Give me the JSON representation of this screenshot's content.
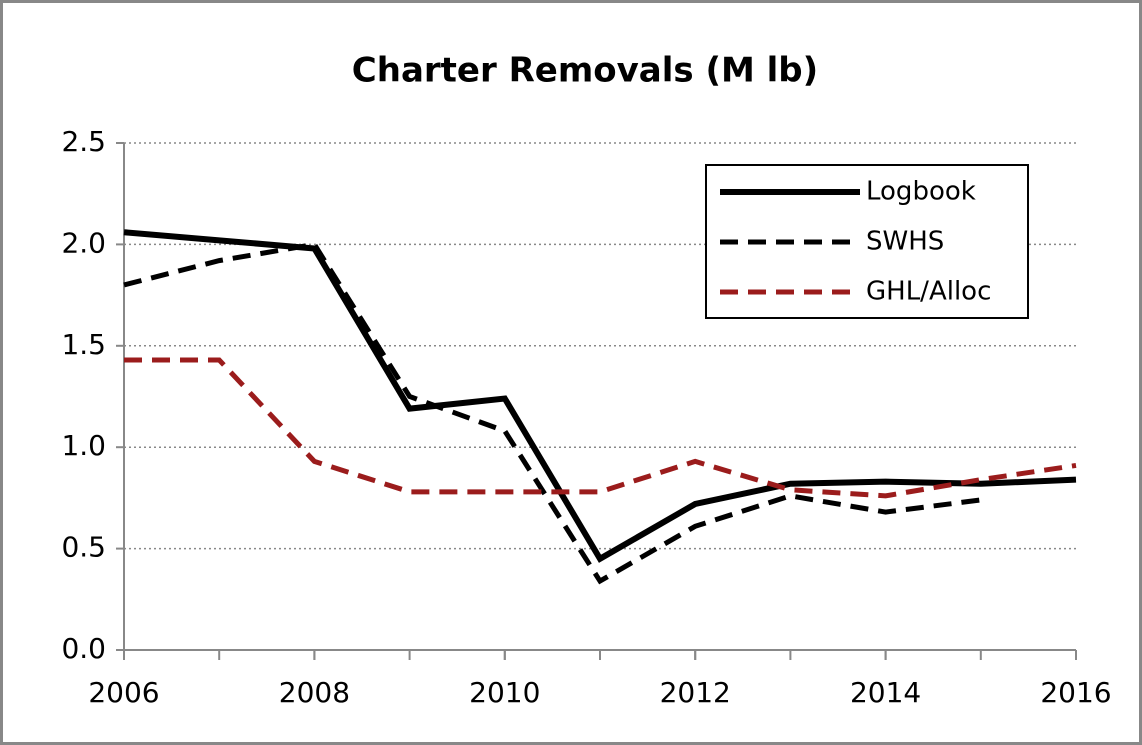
{
  "chart_data": {
    "type": "line",
    "title": "Charter Removals (M lb)",
    "x": [
      2006,
      2007,
      2008,
      2009,
      2010,
      2011,
      2012,
      2013,
      2014,
      2015,
      2016
    ],
    "series": [
      {
        "name": "Logbook",
        "color": "#000000",
        "dash": false,
        "values": [
          2.06,
          2.02,
          1.98,
          1.19,
          1.24,
          0.45,
          0.72,
          0.82,
          0.83,
          0.82,
          0.84
        ]
      },
      {
        "name": "SWHS",
        "color": "#000000",
        "dash": true,
        "values": [
          1.8,
          1.92,
          2.0,
          1.25,
          1.08,
          0.34,
          0.61,
          0.76,
          0.68,
          0.74,
          null
        ]
      },
      {
        "name": "GHL/Alloc",
        "color": "#9b1c1c",
        "dash": true,
        "values": [
          1.43,
          1.43,
          0.93,
          0.78,
          0.78,
          0.78,
          0.93,
          0.79,
          0.76,
          0.84,
          0.91
        ]
      }
    ],
    "xlim": [
      2006,
      2016
    ],
    "xticks": [
      2006,
      2008,
      2010,
      2012,
      2014,
      2016
    ],
    "ylim": [
      0,
      2.5
    ],
    "yticks": [
      {
        "value": 0,
        "label": "0.0"
      },
      0.5,
      {
        "value": 1,
        "label": "1.0"
      },
      1.5,
      {
        "value": 2,
        "label": "2.0"
      },
      2.5
    ],
    "grid": true,
    "legend": "upper right"
  }
}
